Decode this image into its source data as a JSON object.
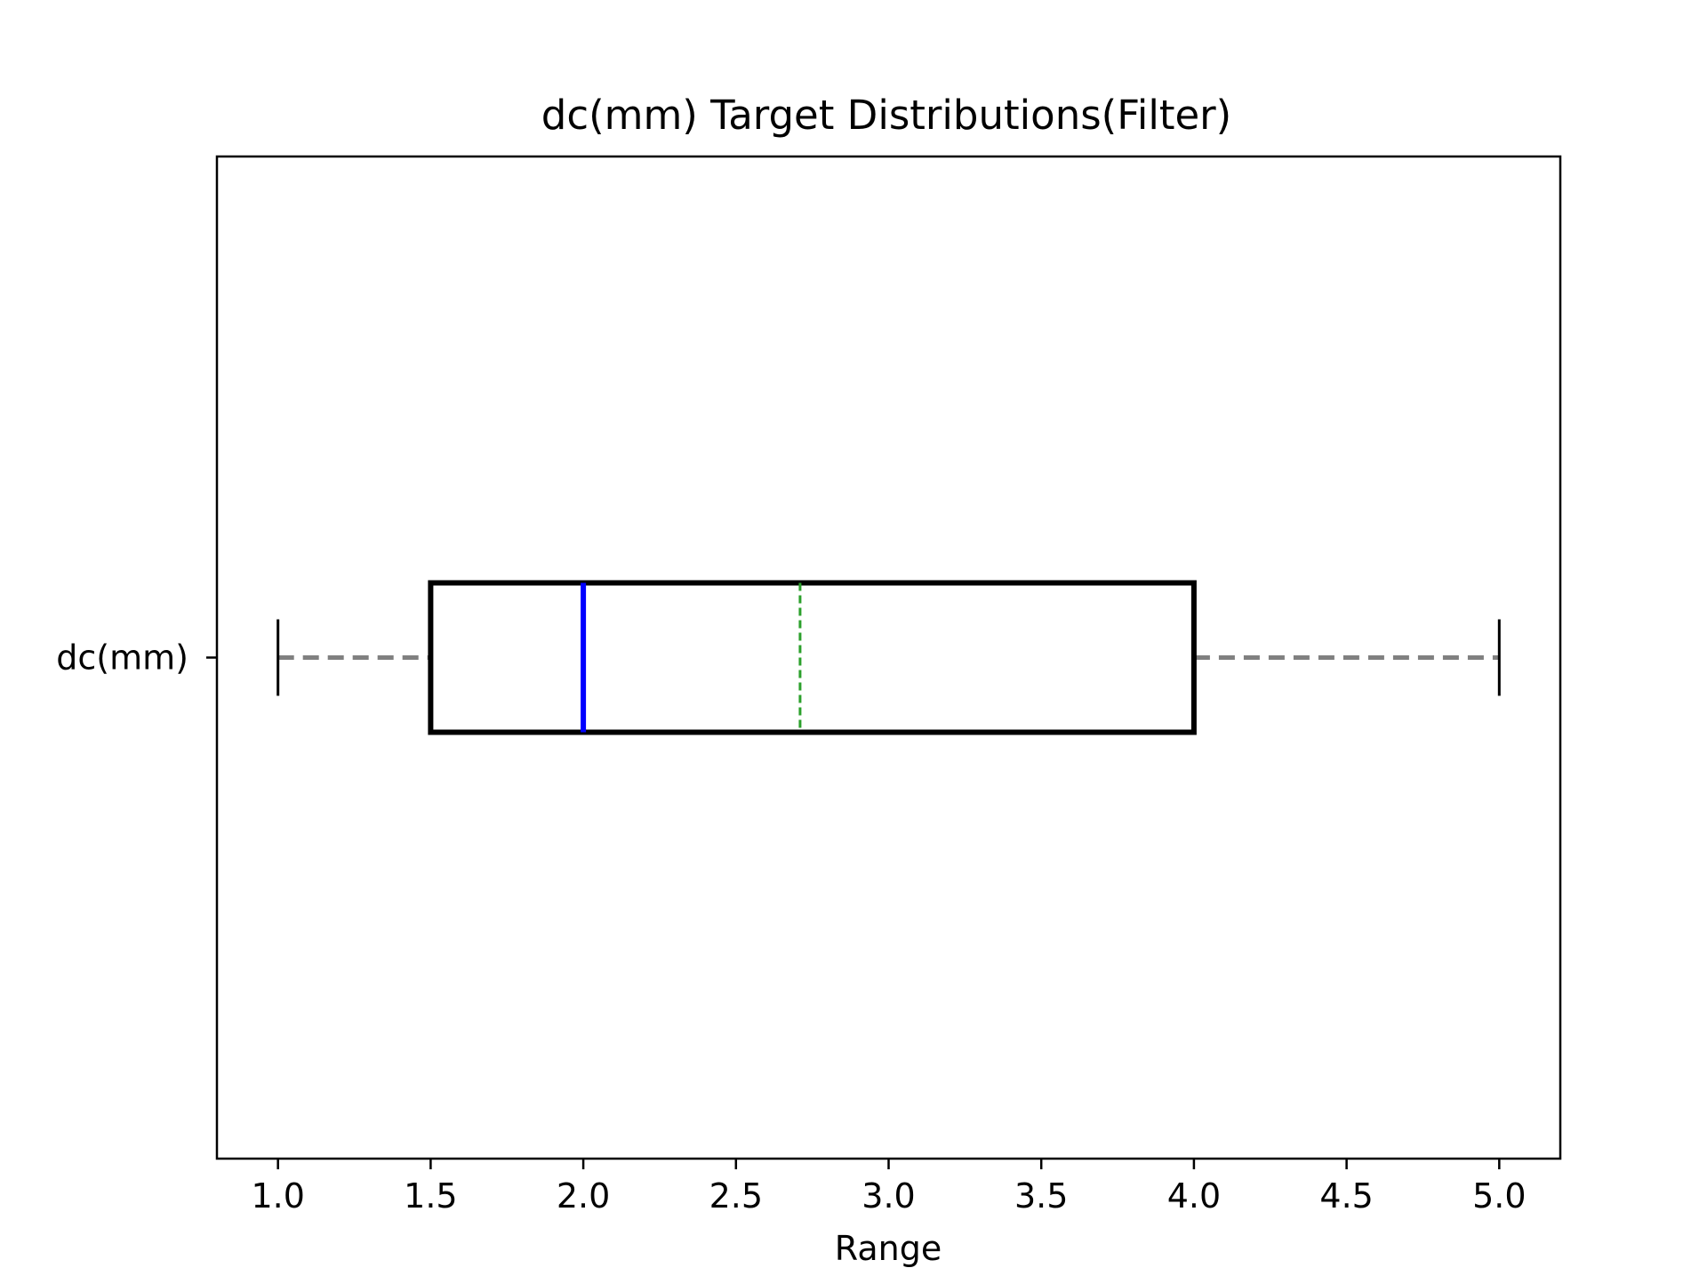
{
  "chart_data": {
    "type": "box",
    "orientation": "horizontal",
    "title": "dc(mm) Target Distributions(Filter)",
    "xlabel": "Range",
    "ylabel": "",
    "xlim": [
      0.8,
      5.2
    ],
    "x_ticks": [
      1.0,
      1.5,
      2.0,
      2.5,
      3.0,
      3.5,
      4.0,
      4.5,
      5.0
    ],
    "x_tick_labels": [
      "1.0",
      "1.5",
      "2.0",
      "2.5",
      "3.0",
      "3.5",
      "4.0",
      "4.5",
      "5.0"
    ],
    "categories": [
      "dc(mm)"
    ],
    "boxes": [
      {
        "label": "dc(mm)",
        "whisker_low": 1.0,
        "q1": 1.5,
        "median": 2.0,
        "mean": 2.71,
        "q3": 4.0,
        "whisker_high": 5.0
      }
    ],
    "grid": false,
    "colors": {
      "box": "#000000",
      "median": "#0000ff",
      "mean": "#2ca02c",
      "whisker": "#808080",
      "cap": "#000000"
    }
  }
}
